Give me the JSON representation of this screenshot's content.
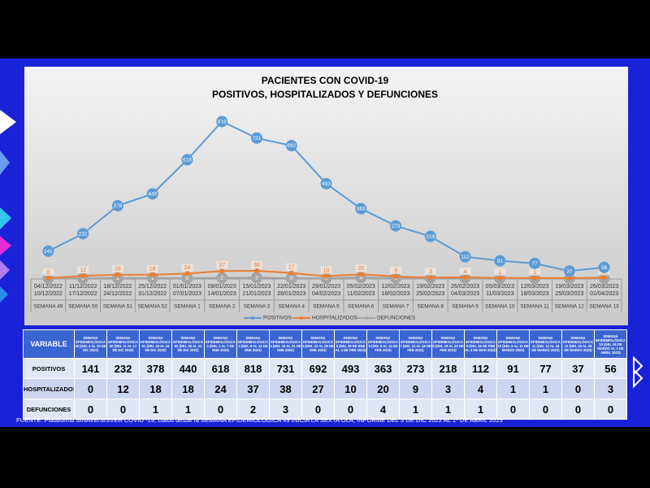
{
  "chart_data": {
    "type": "line",
    "title": "PACIENTES CON COVID-19",
    "subtitle": "POSITIVOS, HOSPITALIZADOS Y DEFUNCIONES",
    "categories": [
      "SEMANA 49",
      "SEMANA 50",
      "SEMANA 51",
      "SEMANA 52",
      "SEMANA 1",
      "SEMANA 2",
      "SEMANA 3",
      "SEMANA 4",
      "SEMANA 5",
      "SEMANA 6",
      "SEMANA 7",
      "SEMANA 8",
      "SEMANA 9",
      "SEMANA 10",
      "SEMANA 11",
      "SEMANA 12",
      "SEMANA 13"
    ],
    "date_ranges": [
      [
        "04/12/2022",
        "10/12/2022"
      ],
      [
        "11/12/2022",
        "17/12/2022"
      ],
      [
        "18/12/2022",
        "24/12/2022"
      ],
      [
        "25/12/2022",
        "31/12/2022"
      ],
      [
        "01/01/2023",
        "07/01/2023"
      ],
      [
        "08/01/2023",
        "14/01/2023"
      ],
      [
        "15/01/2023",
        "21/01/2023"
      ],
      [
        "22/01/2023",
        "28/01/2023"
      ],
      [
        "29/01/2023",
        "04/02/2023"
      ],
      [
        "05/02/2023",
        "11/02/2023"
      ],
      [
        "12/02/2023",
        "18/02/2023"
      ],
      [
        "19/02/2023",
        "25/02/2023"
      ],
      [
        "26/02/2023",
        "04/03/2023"
      ],
      [
        "05/03/2023",
        "11/03/2023"
      ],
      [
        "12/03/2023",
        "18/03/2023"
      ],
      [
        "19/03/2023",
        "25/03/2023"
      ],
      [
        "26/03/2023",
        "01/04/2023"
      ]
    ],
    "series": [
      {
        "name": "POSITIVOS",
        "color": "#5b9bd5",
        "values": [
          141,
          232,
          378,
          440,
          618,
          818,
          731,
          692,
          493,
          363,
          273,
          218,
          112,
          91,
          77,
          37,
          56
        ]
      },
      {
        "name": "HOSPITALIZADOS",
        "color": "#ed7d31",
        "values": [
          0,
          12,
          18,
          18,
          24,
          37,
          38,
          27,
          10,
          20,
          9,
          3,
          4,
          1,
          1,
          0,
          3
        ]
      },
      {
        "name": "DEFUNCIONES",
        "color": "#a5a5a5",
        "values": [
          0,
          0,
          1,
          1,
          0,
          2,
          3,
          0,
          0,
          4,
          1,
          1,
          1,
          0,
          0,
          0,
          0
        ]
      }
    ],
    "ylim": [
      0,
      900
    ],
    "legend": "bottom"
  },
  "table": {
    "corner": "VARIABLE",
    "headers": [
      "SEMANA EPIDEMIOLÓGICA 49 (DEL 4 AL 10 DE DIC 2022)",
      "SEMANA EPIDEMIOLÓGICA 50 (DEL 11 AL 17 DE DIC 2022)",
      "SEMANA EPIDEMIOLÓGICA 51 (DEL 18 AL 24 DE DIC 2022)",
      "SEMANA EPIDEMIOLÓGICA 52 (DEL 25 AL 31 DE DIC 2022)",
      "SEMANA EPIDEMIOLÓGICA 1 (DEL 1 AL 7 DE ENE 2023)",
      "SEMANA EPIDEMIOLÓGICA 2 (DEL 8 AL 14 DE ENE 2023)",
      "SEMANA EPIDEMIOLÓGICA 3 (DEL 15 AL 21 DE ENE 2023)",
      "SEMANA EPIDEMIOLÓGICA 4 (DEL 22 AL 28 DE ENE 2023)",
      "SEMANA EPIDEMIOLÓGICA 5 (DEL 29 DE ENE AL 4 DE FEB 2023)",
      "SEMANA EPIDEMIOLÓGICA 6 (DEL 5 AL 11 DE FEB 2023)",
      "SEMANA EPIDEMIOLÓGICA 7 (DEL 12 AL 18 DE FEB 2023)",
      "SEMANA EPIDEMIOLÓGICA 8 (DEL 19 AL 25 DE FEB 2023)",
      "SEMANA EPIDEMIOLÓGICA 9 (DEL 26 DE FEB AL 4 DE MAR 2023)",
      "SEMANA EPIDEMIOLÓGICA 10 (DEL 5 AL 11 DE MARZO 2023)",
      "SEMANA EPIDEMIOLÓGICA 11 (DEL 12 AL 18 DE MARZO 2023)",
      "SEMANA EPIDEMIOLÓGICA 12 (DEL 19 AL 25 DE MARZO 2023)",
      "SEMANA EPIDEMIOLÓGICA 13 (DEL 26 DE MARZO AL 1 DE ABRIL 2023)"
    ]
  },
  "footnote": "FUENTE: Plataforma SINAVE/SISVER COVID -19, Datos desde la SEMANA EPIDEMIOLÓGICA 49 INICIA LA SEXTA OLA, INFORME DEL 3 DE DIC 2022 AL 1º DE ABRIL  2023"
}
